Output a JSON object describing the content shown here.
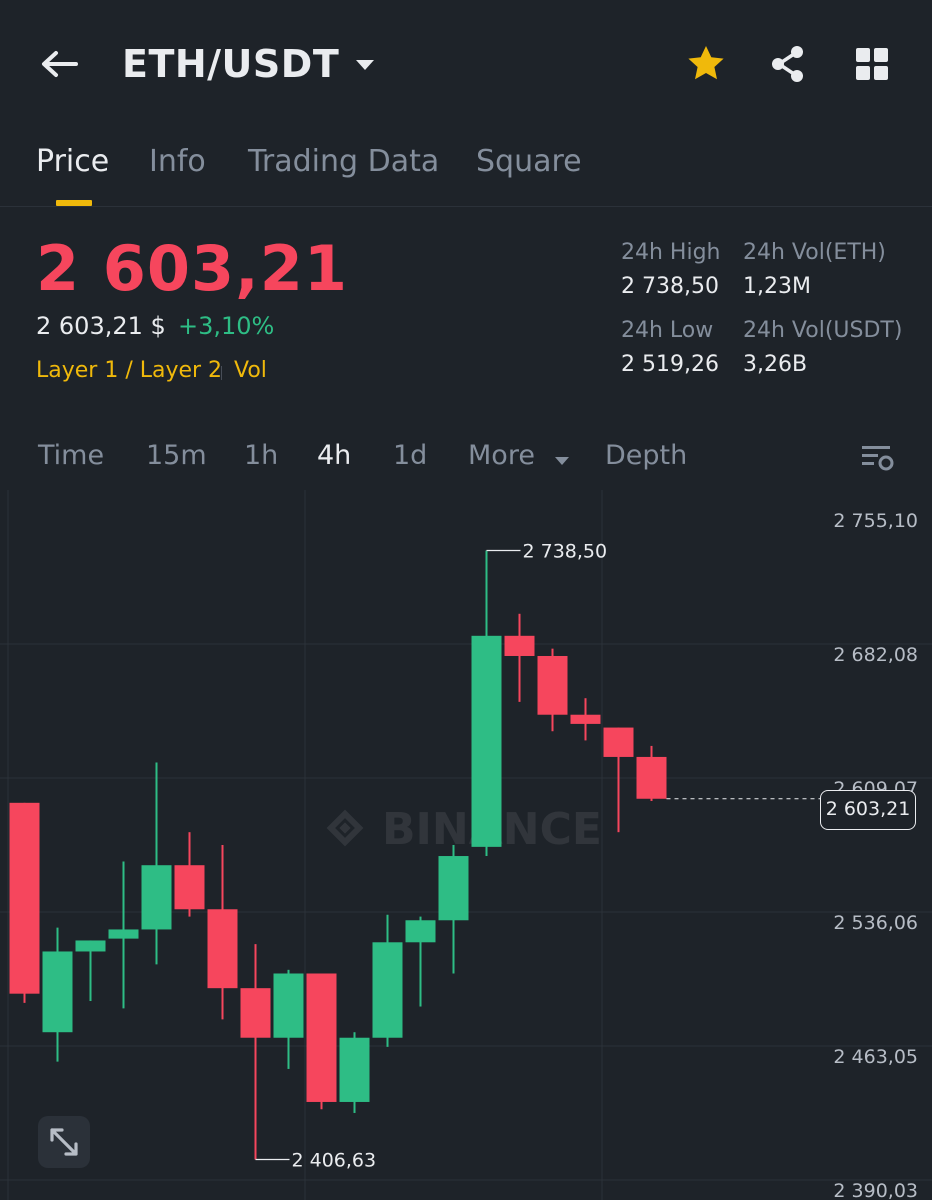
{
  "header": {
    "title": "ETH/USDT"
  },
  "tabs": [
    {
      "label": "Price",
      "active": true
    },
    {
      "label": "Info"
    },
    {
      "label": "Trading Data"
    },
    {
      "label": "Square"
    }
  ],
  "price": {
    "last": "2 603,21",
    "usd": "2 603,21 $",
    "change": "+3,10%",
    "tags": [
      "Layer 1 / Layer 2",
      "Vol"
    ]
  },
  "stats": {
    "high_label": "24h High",
    "high_value": "2 738,50",
    "vol_eth_label": "24h Vol(ETH)",
    "vol_eth_value": "1,23M",
    "low_label": "24h Low",
    "low_value": "2 519,26",
    "vol_usdt_label": "24h Vol(USDT)",
    "vol_usdt_value": "3,26B"
  },
  "intervals": [
    "Time",
    "15m",
    "1h",
    "4h",
    "1d",
    "More",
    "Depth"
  ],
  "active_interval": "4h",
  "colors": {
    "up": "#2ebd85",
    "down": "#f6465d",
    "accent": "#f0b90b",
    "bg": "#1e2329"
  },
  "chart_data": {
    "type": "candlestick",
    "y_ticks": [
      2755.1,
      2682.08,
      2609.07,
      2536.06,
      2463.05,
      2390.03
    ],
    "y_tick_labels": [
      "2 755,10",
      "2 682,08",
      "2 609,07",
      "2 536,06",
      "2 463,05",
      "2 390,03"
    ],
    "candles": [
      {
        "o": 2601,
        "h": 2601,
        "l": 2492,
        "c": 2497
      },
      {
        "o": 2476,
        "h": 2533,
        "l": 2460,
        "c": 2520
      },
      {
        "o": 2520,
        "h": 2526,
        "l": 2493,
        "c": 2526
      },
      {
        "o": 2527,
        "h": 2569,
        "l": 2489,
        "c": 2532
      },
      {
        "o": 2532,
        "h": 2623,
        "l": 2513,
        "c": 2567
      },
      {
        "o": 2567,
        "h": 2585,
        "l": 2539,
        "c": 2543
      },
      {
        "o": 2543,
        "h": 2578,
        "l": 2483,
        "c": 2500
      },
      {
        "o": 2500,
        "h": 2524,
        "l": 2406.63,
        "c": 2473
      },
      {
        "o": 2473,
        "h": 2510,
        "l": 2456,
        "c": 2508
      },
      {
        "o": 2508,
        "h": 2508,
        "l": 2434,
        "c": 2438
      },
      {
        "o": 2438,
        "h": 2476,
        "l": 2432,
        "c": 2473
      },
      {
        "o": 2473,
        "h": 2540,
        "l": 2468,
        "c": 2525
      },
      {
        "o": 2525,
        "h": 2539,
        "l": 2490,
        "c": 2537
      },
      {
        "o": 2537,
        "h": 2578,
        "l": 2508,
        "c": 2572
      },
      {
        "o": 2577,
        "h": 2738.5,
        "l": 2572,
        "c": 2692
      },
      {
        "o": 2692,
        "h": 2704,
        "l": 2656,
        "c": 2681
      },
      {
        "o": 2681,
        "h": 2685,
        "l": 2640,
        "c": 2649
      },
      {
        "o": 2649,
        "h": 2658,
        "l": 2635,
        "c": 2644
      },
      {
        "o": 2642,
        "h": 2642,
        "l": 2585,
        "c": 2626
      },
      {
        "o": 2626,
        "h": 2632,
        "l": 2602,
        "c": 2603.21
      }
    ],
    "high_marker": "2 738,50",
    "low_marker": "2 406,63",
    "last_price_label": "2 603,21"
  }
}
